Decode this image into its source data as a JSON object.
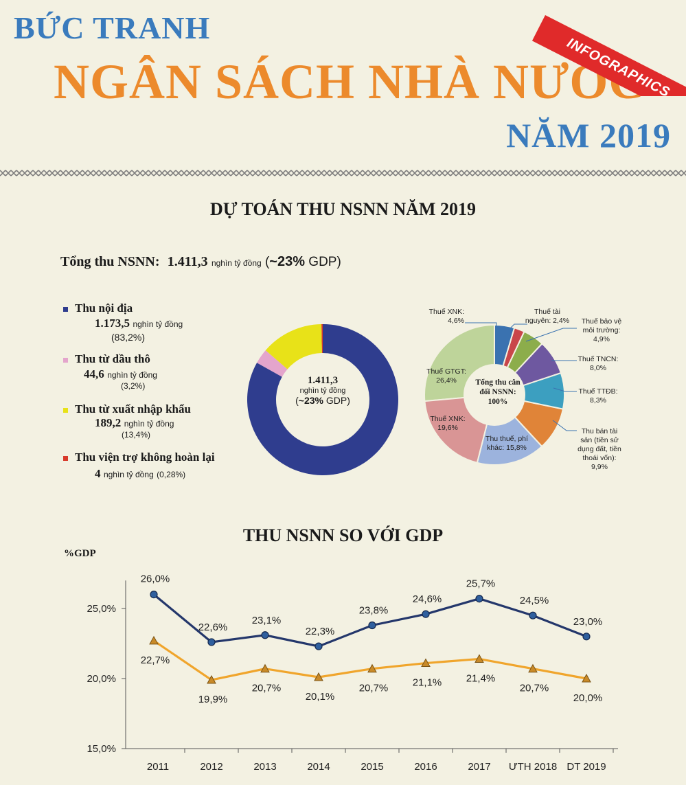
{
  "header": {
    "line1": "BỨC TRANH",
    "line2": "NGÂN SÁCH NHÀ NƯỚC",
    "line3": "NĂM 2019",
    "ribbon": "INFOGRAPHICS"
  },
  "section1": {
    "title": "DỰ TOÁN THU NSNN NĂM 2019",
    "total_label": "Tổng thu NSNN:",
    "total_value": "1.411,3",
    "total_unit": "nghìn tỷ đồng",
    "total_gdp_open": "(",
    "total_gdp_bold": "~23%",
    "total_gdp_close": " GDP)"
  },
  "legend": [
    {
      "label": "Thu nội địa",
      "value": "1.173,5",
      "unit": "nghìn tỷ đồng",
      "pct": "(83,2%)",
      "color": "#2f3d8e"
    },
    {
      "label": "Thu từ dầu thô",
      "value": "44,6",
      "unit": "nghìn tỷ đồng",
      "pct": "(3,2%)",
      "color": "#e4a5cc"
    },
    {
      "label": "Thu từ xuất nhập khẩu",
      "value": "189,2",
      "unit": "nghìn tỷ đồng",
      "pct": "(13,4%)",
      "color": "#e8e218"
    },
    {
      "label": "Thu viện trợ không hoàn lại",
      "value": "4",
      "unit": "nghìn tỷ đồng",
      "pct": "(0,28%)",
      "color": "#d83a2b"
    }
  ],
  "donut_center": {
    "value": "1.411,3",
    "unit": "nghìn tỷ đồng",
    "gdp_open": "(",
    "gdp_bold": "~23%",
    "gdp_close": " GDP)"
  },
  "pie_center": {
    "line1": "Tổng thu cân",
    "line2": "đối NSNN:",
    "line3": "100%"
  },
  "pie_labels": {
    "xnk": [
      "Thuế XNK:",
      "4,6%"
    ],
    "tainguyen": [
      "Thuế tài",
      "nguyên: 2,4%"
    ],
    "baove": [
      "Thuế bảo vệ",
      "môi trường:",
      "4,9%"
    ],
    "tncn": [
      "Thuế TNCN:",
      "8,0%"
    ],
    "ttdb": [
      "Thuế TTĐB:",
      "8,3%"
    ],
    "bantaisan": [
      "Thu bán tài",
      "sản (tiền sử",
      "dụng đất, tiền",
      "thoái vốn):",
      "9,9%"
    ],
    "phikhac": [
      "Thu thuế, phí",
      "khác: 15,8%"
    ],
    "xnk2": [
      "Thuế XNK:",
      "19,6%"
    ],
    "gtgt": [
      "Thuế GTGT:",
      "26,4%"
    ]
  },
  "section2": {
    "title": "THU NSNN SO VỚI GDP",
    "y_unit": "%GDP"
  },
  "chart_data": [
    {
      "type": "pie",
      "slices": [
        {
          "label": "Thu nội địa",
          "value": 83.2,
          "color": "#2f3d8e"
        },
        {
          "label": "Thu từ dầu thô",
          "value": 3.2,
          "color": "#e4a5cc"
        },
        {
          "label": "Thu từ xuất nhập khẩu",
          "value": 13.4,
          "color": "#e8e218"
        },
        {
          "label": "Thu viện trợ không hoàn lại",
          "value": 0.28,
          "color": "#d83a2b"
        }
      ],
      "center_text": "1.411,3 nghìn tỷ đồng (~23% GDP)"
    },
    {
      "type": "pie",
      "slices": [
        {
          "label": "Thuế XNK",
          "value": 4.6,
          "color": "#3a72b0"
        },
        {
          "label": "Thuế tài nguyên",
          "value": 2.4,
          "color": "#c9464a"
        },
        {
          "label": "Thuế bảo vệ môi trường",
          "value": 4.9,
          "color": "#8cad4b"
        },
        {
          "label": "Thuế TNCN",
          "value": 8.0,
          "color": "#6e58a0"
        },
        {
          "label": "Thuế TTĐB",
          "value": 8.3,
          "color": "#3c9fc0"
        },
        {
          "label": "Thu bán tài sản (tiền sử dụng đất, tiền thoái vốn)",
          "value": 9.9,
          "color": "#e08438"
        },
        {
          "label": "Thu thuế, phí khác",
          "value": 15.8,
          "color": "#9cb3dd"
        },
        {
          "label": "Thuế XNK",
          "value": 19.6,
          "color": "#d99595"
        },
        {
          "label": "Thuế GTGT",
          "value": 26.4,
          "color": "#bed49a"
        }
      ],
      "center_text": "Tổng thu cân đối NSNN: 100%"
    },
    {
      "type": "line",
      "title": "THU NSNN SO VỚI GDP",
      "ylabel": "%GDP",
      "categories": [
        "2011",
        "2012",
        "2013",
        "2014",
        "2015",
        "2016",
        "2017",
        "ƯTH 2018",
        "DT 2019"
      ],
      "ylim": [
        15,
        27
      ],
      "yticks": [
        "15,0%",
        "20,0%",
        "25,0%"
      ],
      "ytick_values": [
        15,
        20,
        25
      ],
      "series": [
        {
          "values": [
            26.0,
            22.6,
            23.1,
            22.3,
            23.8,
            24.6,
            25.7,
            24.5,
            23.0
          ],
          "labels": [
            "26,0%",
            "22,6%",
            "23,1%",
            "22,3%",
            "23,8%",
            "24,6%",
            "25,7%",
            "24,5%",
            "23,0%"
          ],
          "color": "#24376b",
          "marker": "circle"
        },
        {
          "values": [
            22.7,
            19.9,
            20.7,
            20.1,
            20.7,
            21.1,
            21.4,
            20.7,
            20.0
          ],
          "labels": [
            "22,7%",
            "19,9%",
            "20,7%",
            "20,1%",
            "20,7%",
            "21,1%",
            "21,4%",
            "20,7%",
            "20,0%"
          ],
          "color": "#f0a52c",
          "marker": "triangle"
        }
      ],
      "grid": false
    }
  ]
}
